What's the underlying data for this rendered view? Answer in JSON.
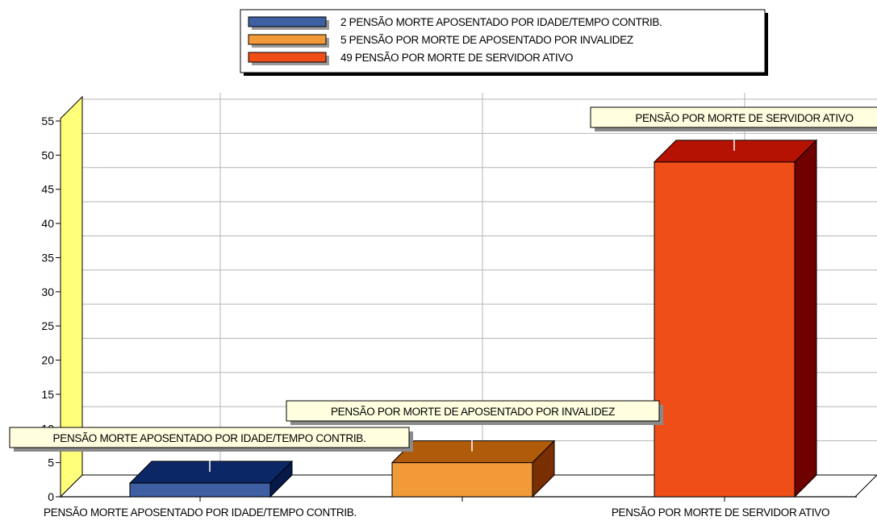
{
  "chart_data": {
    "type": "bar",
    "categories": [
      "PENSÃO MORTE APOSENTADO POR IDADE/TEMPO CONTRIB.",
      "PENSÃO POR MORTE DE APOSENTADO POR INVALIDEZ",
      "PENSÃO POR MORTE DE SERVIDOR ATIVO"
    ],
    "values": [
      2,
      5,
      49
    ],
    "legend": [
      "2 PENSÃO MORTE APOSENTADO POR IDADE/TEMPO CONTRIB.",
      " 5 PENSÃO POR MORTE DE APOSENTADO POR INVALIDEZ",
      "49 PENSÃO POR MORTE DE SERVIDOR ATIVO"
    ],
    "x_tick_labels": [
      "PENSÃO MORTE APOSENTADO POR IDADE/TEMPO CONTRIB.",
      "",
      "PENSÃO POR MORTE DE SERVIDOR ATIVO"
    ],
    "ylim": [
      0,
      55
    ],
    "y_ticks": [
      0,
      5,
      10,
      15,
      20,
      25,
      30,
      35,
      40,
      45,
      50,
      55
    ],
    "grid": true,
    "legend_position": "top-center",
    "colors": {
      "front": [
        "#3f5fa3",
        "#f29a38",
        "#f04e18"
      ],
      "top": [
        "#0c2766",
        "#b05b0a",
        "#b51204"
      ],
      "side": [
        "#061a4a",
        "#7a2f02",
        "#6e0000"
      ],
      "wall": "#ffff7a",
      "label_bg": "#ffffe0"
    }
  }
}
